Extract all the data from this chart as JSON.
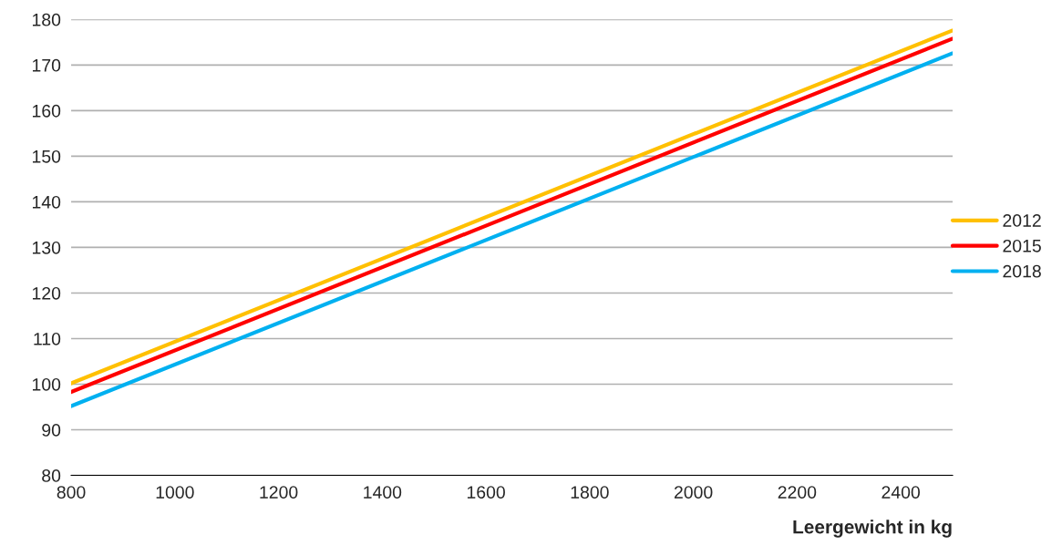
{
  "chart_data": {
    "type": "line",
    "xlabel": "Leergewicht in kg",
    "x": [
      800,
      2500
    ],
    "series": [
      {
        "name": "2012",
        "color": "#ffc000",
        "values": [
          100.2,
          177.6
        ]
      },
      {
        "name": "2015",
        "color": "#ff0000",
        "values": [
          98.3,
          175.8
        ]
      },
      {
        "name": "2018",
        "color": "#00b0f0",
        "values": [
          95.2,
          172.6
        ]
      }
    ],
    "xlim": [
      800,
      2500
    ],
    "ylim": [
      80,
      180
    ],
    "xticks": [
      800,
      1000,
      1200,
      1400,
      1600,
      1800,
      2000,
      2200,
      2400
    ],
    "yticks": [
      80,
      90,
      100,
      110,
      120,
      130,
      140,
      150,
      160,
      170,
      180
    ],
    "grid": "y",
    "legend": "right",
    "marker": "none",
    "line_style": "solid"
  }
}
